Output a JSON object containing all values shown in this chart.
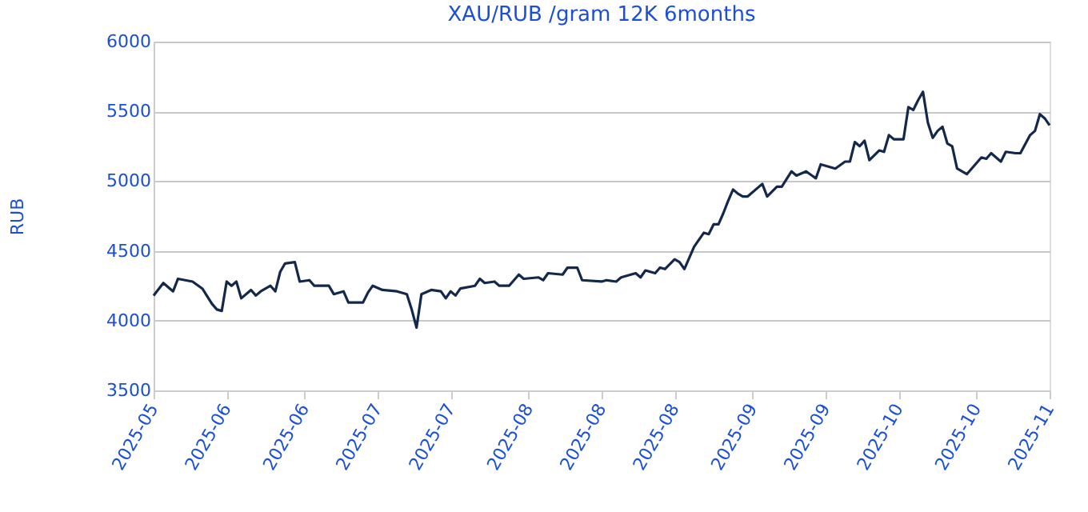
{
  "chart_data": {
    "type": "line",
    "title": "XAU/RUB /gram 12K 6months",
    "ylabel": "RUB",
    "x": [
      "2025-05-01",
      "2025-05-03",
      "2025-05-05",
      "2025-05-06",
      "2025-05-09",
      "2025-05-11",
      "2025-05-13",
      "2025-05-14",
      "2025-05-15",
      "2025-05-16",
      "2025-05-17",
      "2025-05-18",
      "2025-05-19",
      "2025-05-21",
      "2025-05-22",
      "2025-05-23",
      "2025-05-25",
      "2025-05-26",
      "2025-05-27",
      "2025-05-28",
      "2025-05-30",
      "2025-05-31",
      "2025-06-02",
      "2025-06-03",
      "2025-06-06",
      "2025-06-07",
      "2025-06-09",
      "2025-06-10",
      "2025-06-13",
      "2025-06-14",
      "2025-06-15",
      "2025-06-17",
      "2025-06-20",
      "2025-06-22",
      "2025-06-23",
      "2025-06-24",
      "2025-06-25",
      "2025-06-27",
      "2025-06-29",
      "2025-06-30",
      "2025-07-01",
      "2025-07-02",
      "2025-07-03",
      "2025-07-06",
      "2025-07-07",
      "2025-07-08",
      "2025-07-10",
      "2025-07-11",
      "2025-07-13",
      "2025-07-15",
      "2025-07-16",
      "2025-07-19",
      "2025-07-20",
      "2025-07-21",
      "2025-07-24",
      "2025-07-25",
      "2025-07-27",
      "2025-07-28",
      "2025-08-01",
      "2025-08-02",
      "2025-08-04",
      "2025-08-05",
      "2025-08-08",
      "2025-08-09",
      "2025-08-10",
      "2025-08-12",
      "2025-08-13",
      "2025-08-14",
      "2025-08-16",
      "2025-08-17",
      "2025-08-18",
      "2025-08-20",
      "2025-08-22",
      "2025-08-23",
      "2025-08-24",
      "2025-08-25",
      "2025-08-26",
      "2025-08-27",
      "2025-08-28",
      "2025-08-29",
      "2025-08-30",
      "2025-08-31",
      "2025-09-03",
      "2025-09-04",
      "2025-09-06",
      "2025-09-07",
      "2025-09-09",
      "2025-09-10",
      "2025-09-12",
      "2025-09-14",
      "2025-09-15",
      "2025-09-18",
      "2025-09-20",
      "2025-09-21",
      "2025-09-22",
      "2025-09-23",
      "2025-09-24",
      "2025-09-25",
      "2025-09-27",
      "2025-09-28",
      "2025-09-29",
      "2025-09-30",
      "2025-10-02",
      "2025-10-03",
      "2025-10-04",
      "2025-10-05",
      "2025-10-06",
      "2025-10-07",
      "2025-10-08",
      "2025-10-09",
      "2025-10-10",
      "2025-10-11",
      "2025-10-12",
      "2025-10-13",
      "2025-10-15",
      "2025-10-16",
      "2025-10-18",
      "2025-10-19",
      "2025-10-20",
      "2025-10-22",
      "2025-10-23",
      "2025-10-25",
      "2025-10-26",
      "2025-10-28",
      "2025-10-29",
      "2025-10-30",
      "2025-10-31",
      "2025-11-01"
    ],
    "series": [
      {
        "color": "#14284b",
        "values": [
          4180,
          4270,
          4210,
          4300,
          4280,
          4230,
          4120,
          4080,
          4070,
          4280,
          4250,
          4280,
          4160,
          4220,
          4180,
          4210,
          4250,
          4210,
          4350,
          4410,
          4420,
          4280,
          4290,
          4250,
          4250,
          4190,
          4210,
          4130,
          4130,
          4200,
          4250,
          4220,
          4210,
          4190,
          4080,
          3950,
          4190,
          4220,
          4210,
          4160,
          4210,
          4180,
          4230,
          4250,
          4300,
          4270,
          4280,
          4250,
          4250,
          4330,
          4300,
          4310,
          4290,
          4340,
          4330,
          4380,
          4380,
          4290,
          4280,
          4290,
          4280,
          4310,
          4340,
          4310,
          4360,
          4340,
          4380,
          4370,
          4440,
          4420,
          4370,
          4530,
          4630,
          4620,
          4690,
          4690,
          4770,
          4860,
          4940,
          4910,
          4890,
          4890,
          4980,
          4890,
          4960,
          4960,
          5070,
          5040,
          5070,
          5020,
          5120,
          5090,
          5140,
          5140,
          5280,
          5250,
          5290,
          5150,
          5220,
          5210,
          5330,
          5300,
          5300,
          5530,
          5510,
          5580,
          5640,
          5420,
          5310,
          5360,
          5390,
          5270,
          5250,
          5090,
          5050,
          5090,
          5170,
          5160,
          5200,
          5140,
          5210,
          5200,
          5200,
          5330,
          5360,
          5480,
          5450,
          5400
        ]
      }
    ],
    "xlim": [
      "2025-05-01",
      "2025-11-01"
    ],
    "xticks": [
      {
        "value": "2025-05-01",
        "label": "2025-05"
      },
      {
        "value": "2025-05-16",
        "label": "2025-06"
      },
      {
        "value": "2025-06-01",
        "label": "2025-06"
      },
      {
        "value": "2025-06-16",
        "label": "2025-07"
      },
      {
        "value": "2025-07-01",
        "label": "2025-07"
      },
      {
        "value": "2025-07-17",
        "label": "2025-08"
      },
      {
        "value": "2025-08-01",
        "label": "2025-08"
      },
      {
        "value": "2025-08-16",
        "label": "2025-08"
      },
      {
        "value": "2025-09-01",
        "label": "2025-09"
      },
      {
        "value": "2025-09-16",
        "label": "2025-09"
      },
      {
        "value": "2025-10-01",
        "label": "2025-10"
      },
      {
        "value": "2025-10-17",
        "label": "2025-10"
      },
      {
        "value": "2025-11-01",
        "label": "2025-11"
      }
    ],
    "ylim": [
      3500,
      6000
    ],
    "yticks": [
      3500,
      4000,
      4500,
      5000,
      5500,
      6000
    ],
    "grid": "y",
    "legend": false,
    "marker": "none",
    "line_style": "solid"
  }
}
